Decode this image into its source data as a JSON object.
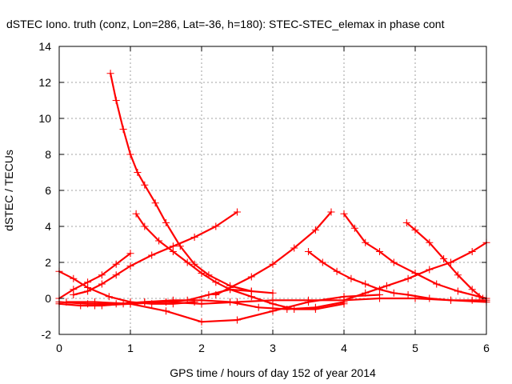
{
  "chart_data": {
    "type": "scatter",
    "title": "dSTEC Iono. truth (conz, Lon=286, Lat=-36, h=180): STEC-STEC_elemax in phase cont",
    "xlabel": "GPS time / hours of day 152 of year 2014",
    "ylabel": "dSTEC  / TECUs",
    "xlim": [
      0,
      6
    ],
    "ylim": [
      -2,
      14
    ],
    "xticks": [
      "0",
      "1",
      "2",
      "3",
      "4",
      "5",
      "6"
    ],
    "yticks": [
      "-2",
      "0",
      "2",
      "4",
      "6",
      "8",
      "10",
      "12",
      "14"
    ],
    "grid": true,
    "legend": "none",
    "marker": "plus",
    "series_color": "#ff0000",
    "series": [
      {
        "x": [
          0.72,
          0.8,
          0.9,
          1.0,
          1.1,
          1.2,
          1.35,
          1.5,
          1.7,
          1.9,
          2.1,
          2.4,
          2.7
        ],
        "y": [
          12.5,
          11.0,
          9.4,
          8.0,
          7.0,
          6.3,
          5.3,
          4.2,
          2.9,
          1.9,
          1.3,
          0.7,
          0.4
        ]
      },
      {
        "x": [
          1.08,
          1.2,
          1.4,
          1.6,
          1.8,
          2.0,
          2.2,
          2.4,
          2.7,
          3.0,
          3.3,
          3.6,
          4.0
        ],
        "y": [
          4.7,
          4.0,
          3.2,
          2.6,
          2.0,
          1.4,
          0.9,
          0.5,
          0.1,
          -0.3,
          -0.6,
          -0.6,
          -0.3
        ]
      },
      {
        "x": [
          0.2,
          0.4,
          0.6,
          0.8,
          1.0,
          1.3,
          1.6,
          1.9,
          2.2,
          2.5
        ],
        "y": [
          0.2,
          0.4,
          0.8,
          1.3,
          1.8,
          2.4,
          2.9,
          3.4,
          4.0,
          4.8
        ]
      },
      {
        "x": [
          2.2,
          2.4,
          2.7,
          3.0,
          3.3,
          3.6,
          3.82
        ],
        "y": [
          0.2,
          0.6,
          1.2,
          1.9,
          2.8,
          3.8,
          4.8
        ]
      },
      {
        "x": [
          3.5,
          3.7,
          3.9,
          4.1,
          4.3,
          4.5,
          4.7,
          4.9,
          5.2,
          5.5,
          5.8,
          6.0
        ],
        "y": [
          2.6,
          2.0,
          1.5,
          1.1,
          0.8,
          0.5,
          0.3,
          0.2,
          0.0,
          -0.1,
          -0.1,
          -0.1
        ]
      },
      {
        "x": [
          4.0,
          4.15,
          4.3,
          4.5,
          4.7,
          5.0,
          5.3,
          5.6,
          5.9,
          6.0
        ],
        "y": [
          4.7,
          3.9,
          3.1,
          2.6,
          2.0,
          1.4,
          0.8,
          0.4,
          0.1,
          0.0
        ]
      },
      {
        "x": [
          4.88,
          5.0,
          5.2,
          5.4,
          5.6,
          5.8,
          5.95
        ],
        "y": [
          4.2,
          3.8,
          3.1,
          2.2,
          1.3,
          0.5,
          0.0
        ]
      },
      {
        "x": [
          4.0,
          4.3,
          4.6,
          4.9,
          5.2,
          5.5,
          5.8,
          6.0
        ],
        "y": [
          -0.1,
          0.3,
          0.7,
          1.1,
          1.6,
          2.0,
          2.6,
          3.1
        ]
      },
      {
        "x": [
          0.0,
          0.2,
          0.4,
          0.6,
          0.8,
          1.0
        ],
        "y": [
          0.0,
          0.5,
          0.9,
          1.3,
          1.9,
          2.5
        ]
      },
      {
        "x": [
          0.0,
          0.2,
          0.4,
          0.7,
          1.0,
          1.3,
          1.6,
          1.9
        ],
        "y": [
          1.5,
          1.1,
          0.6,
          0.1,
          -0.2,
          -0.3,
          -0.3,
          -0.2
        ]
      },
      {
        "x": [
          0.0,
          0.3,
          0.6,
          0.9,
          1.2,
          1.5,
          1.8,
          2.1,
          2.4,
          2.7,
          3.0
        ],
        "y": [
          -0.3,
          -0.4,
          -0.4,
          -0.3,
          -0.2,
          -0.2,
          -0.1,
          0.2,
          0.5,
          0.4,
          0.3
        ]
      },
      {
        "x": [
          0.1,
          0.5,
          1.0,
          1.5,
          2.0,
          2.5,
          3.0,
          3.5,
          4.0,
          4.5,
          5.0,
          5.5,
          6.0
        ],
        "y": [
          -0.2,
          -0.2,
          -0.3,
          -0.2,
          -0.3,
          -0.2,
          -0.1,
          -0.1,
          -0.1,
          0.0,
          0.0,
          -0.1,
          -0.2
        ]
      },
      {
        "x": [
          0.5,
          1.0,
          1.5,
          2.0,
          2.5,
          3.0,
          3.5,
          4.0,
          4.5
        ],
        "y": [
          -0.4,
          -0.3,
          -0.7,
          -1.3,
          -1.2,
          -0.7,
          -0.2,
          0.1,
          0.2
        ]
      },
      {
        "x": [
          0.0,
          0.4,
          0.8,
          1.2,
          1.6,
          2.0,
          2.4,
          2.8,
          3.2,
          3.6,
          4.0
        ],
        "y": [
          -0.2,
          -0.3,
          -0.3,
          -0.2,
          -0.1,
          -0.1,
          -0.2,
          -0.5,
          -0.6,
          -0.5,
          -0.2
        ]
      }
    ]
  }
}
